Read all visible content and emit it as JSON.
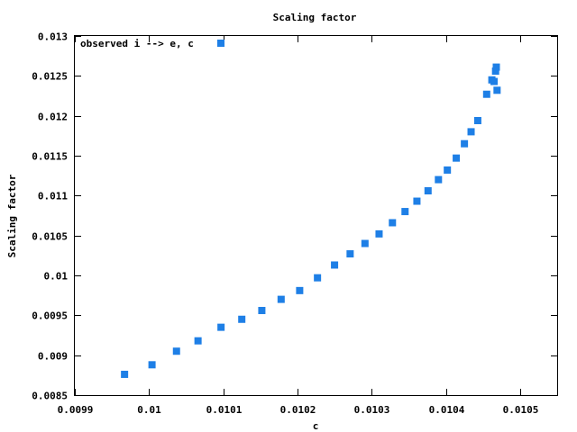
{
  "chart_data": {
    "type": "scatter",
    "title": "Scaling factor",
    "xlabel": "c",
    "ylabel": "Scaling factor",
    "xlim": [
      0.0099,
      0.01055
    ],
    "ylim": [
      0.0085,
      0.013
    ],
    "x_ticks": [
      0.0099,
      0.01,
      0.0101,
      0.0102,
      0.0103,
      0.0104,
      0.0105
    ],
    "x_tick_labels": [
      "0.0099",
      "0.01",
      "0.0101",
      "0.0102",
      "0.0103",
      "0.0104",
      "0.0105"
    ],
    "y_ticks": [
      0.0085,
      0.009,
      0.0095,
      0.01,
      0.0105,
      0.011,
      0.0115,
      0.012,
      0.0125,
      0.013
    ],
    "y_tick_labels": [
      "0.0085",
      "0.009",
      "0.0095",
      "0.01",
      "0.0105",
      "0.011",
      "0.0115",
      "0.012",
      "0.0125",
      "0.013"
    ],
    "grid": false,
    "legend_position": "top-left",
    "series": [
      {
        "name": "observed i --> e, c",
        "color": "#1e7fe6",
        "marker": "square",
        "x": [
          0.009967,
          0.010004,
          0.010037,
          0.010066,
          0.010097,
          0.010125,
          0.010152,
          0.010178,
          0.010203,
          0.010227,
          0.01025,
          0.010271,
          0.010291,
          0.01031,
          0.010328,
          0.010345,
          0.010361,
          0.010376,
          0.01039,
          0.010402,
          0.010414,
          0.010425,
          0.010434,
          0.010443,
          0.010455,
          0.010462,
          0.010465,
          0.010467,
          0.010468,
          0.010469
        ],
        "y": [
          0.00876,
          0.00888,
          0.00905,
          0.00918,
          0.00935,
          0.00945,
          0.00956,
          0.0097,
          0.00981,
          0.00997,
          0.01013,
          0.01027,
          0.0104,
          0.01052,
          0.01066,
          0.0108,
          0.01093,
          0.01106,
          0.0112,
          0.01132,
          0.01147,
          0.01165,
          0.0118,
          0.01194,
          0.01227,
          0.01245,
          0.01243,
          0.01256,
          0.01261,
          0.01232
        ]
      }
    ]
  }
}
